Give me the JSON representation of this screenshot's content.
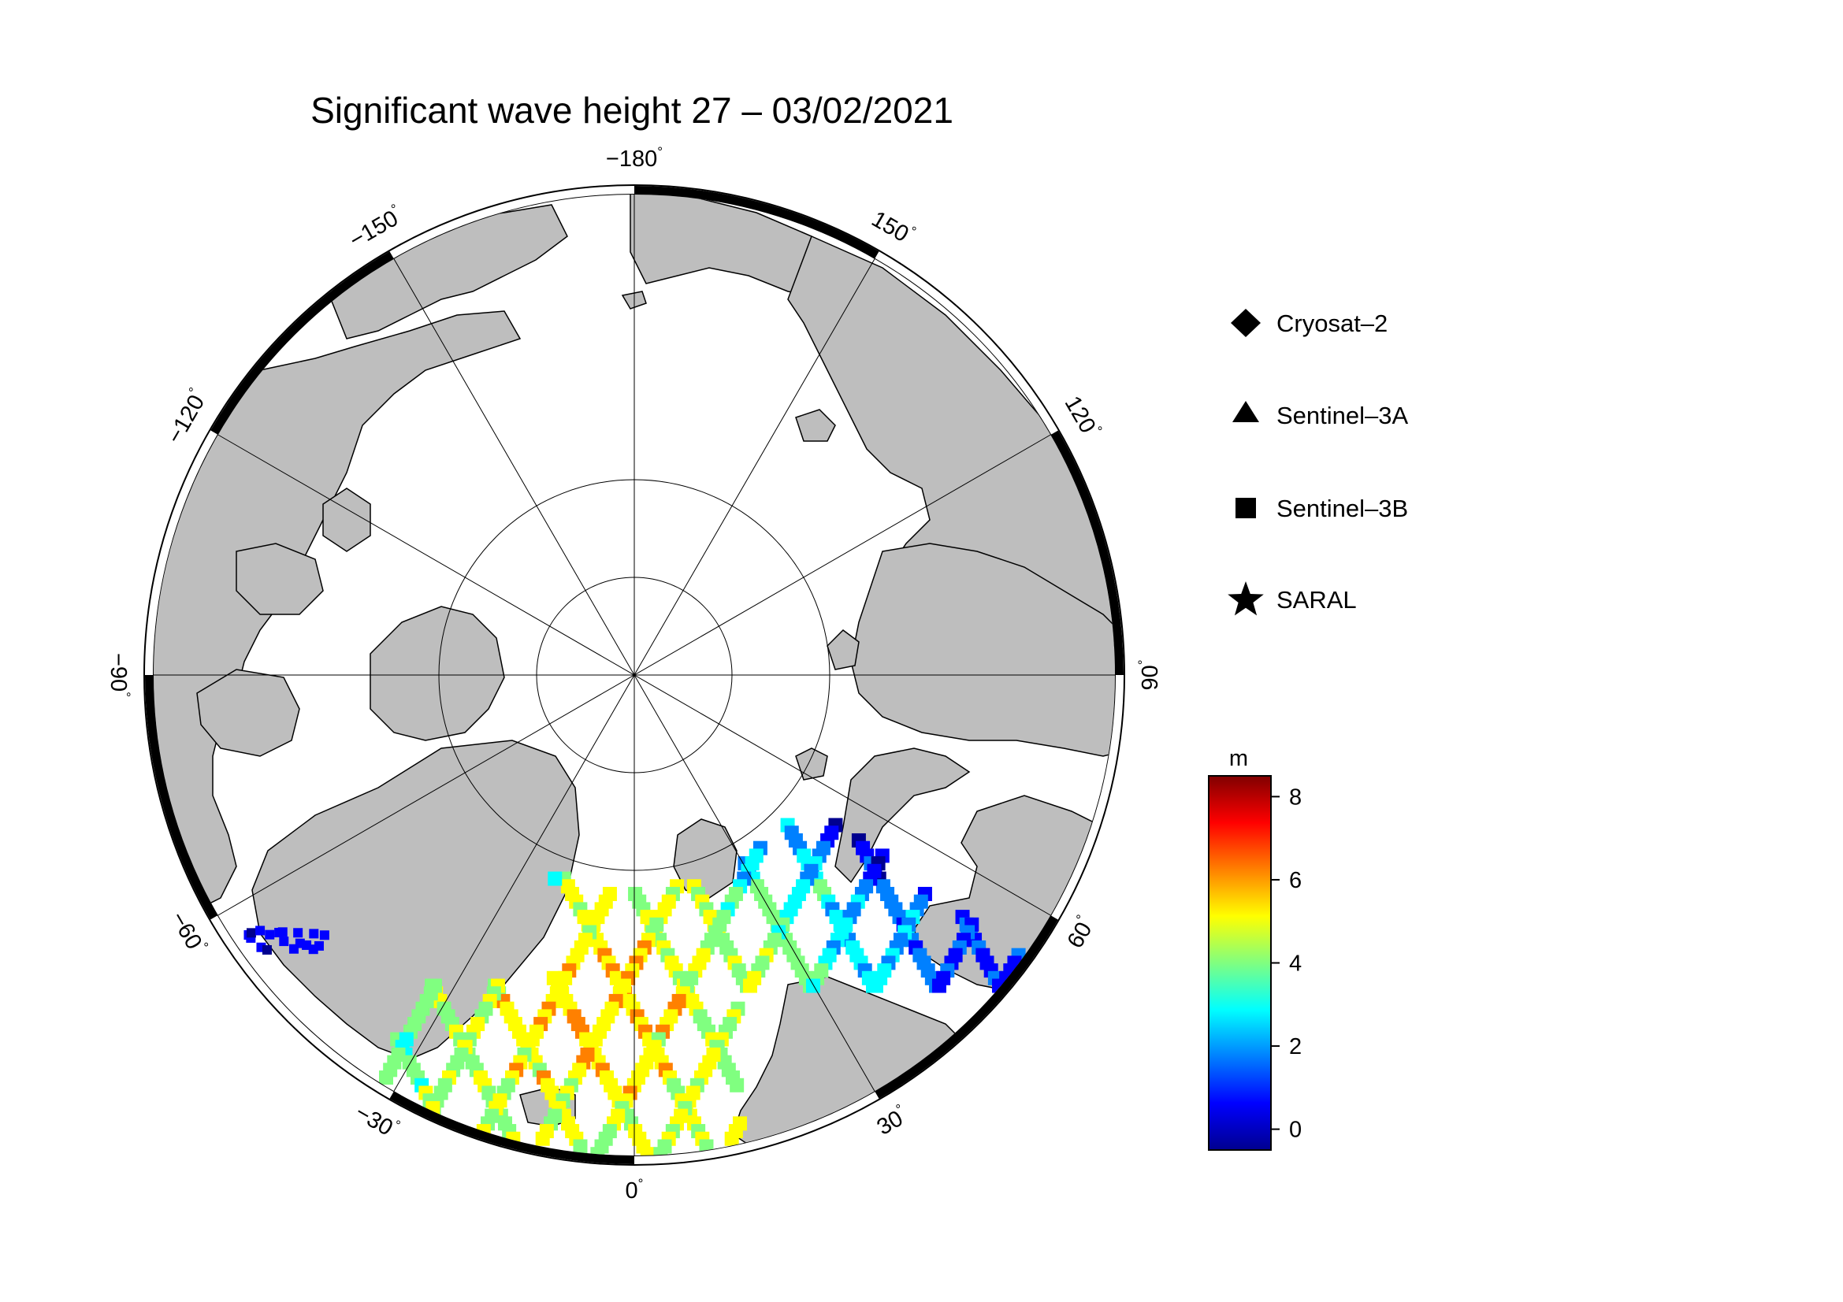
{
  "title": "Significant wave height 27 – 03/02/2021",
  "map": {
    "projection": "north polar stereographic",
    "longitude_labels": [
      {
        "value": "−180",
        "lon": 180
      },
      {
        "value": "150",
        "lon": 150
      },
      {
        "value": "120",
        "lon": 120
      },
      {
        "value": "90",
        "lon": 90
      },
      {
        "value": "60",
        "lon": 60
      },
      {
        "value": "30",
        "lon": 30
      },
      {
        "value": "0",
        "lon": 0
      },
      {
        "value": "−30",
        "lon": -30
      },
      {
        "value": "−60",
        "lon": -60
      },
      {
        "value": "−90",
        "lon": -90
      },
      {
        "value": "−120",
        "lon": -120
      },
      {
        "value": "−150",
        "lon": -150
      }
    ],
    "degree_symbol": "°",
    "colors": {
      "land": "#bebebe",
      "ocean": "#ffffff",
      "frame": "#000000"
    }
  },
  "legend": {
    "items": [
      {
        "label": "Cryosat–2",
        "symbol": "diamond"
      },
      {
        "label": "Sentinel–3A",
        "symbol": "triangle"
      },
      {
        "label": "Sentinel–3B",
        "symbol": "square"
      },
      {
        "label": "SARAL",
        "symbol": "star"
      }
    ]
  },
  "colorbar": {
    "unit": "m",
    "ticks": [
      "8",
      "6",
      "4",
      "2",
      "0"
    ],
    "range": [
      -0.5,
      8.5
    ],
    "colormap": [
      "#00008f",
      "#0000ff",
      "#0080ff",
      "#00ffff",
      "#80ff80",
      "#ffff00",
      "#ff8000",
      "#ff0000",
      "#800000"
    ]
  }
}
